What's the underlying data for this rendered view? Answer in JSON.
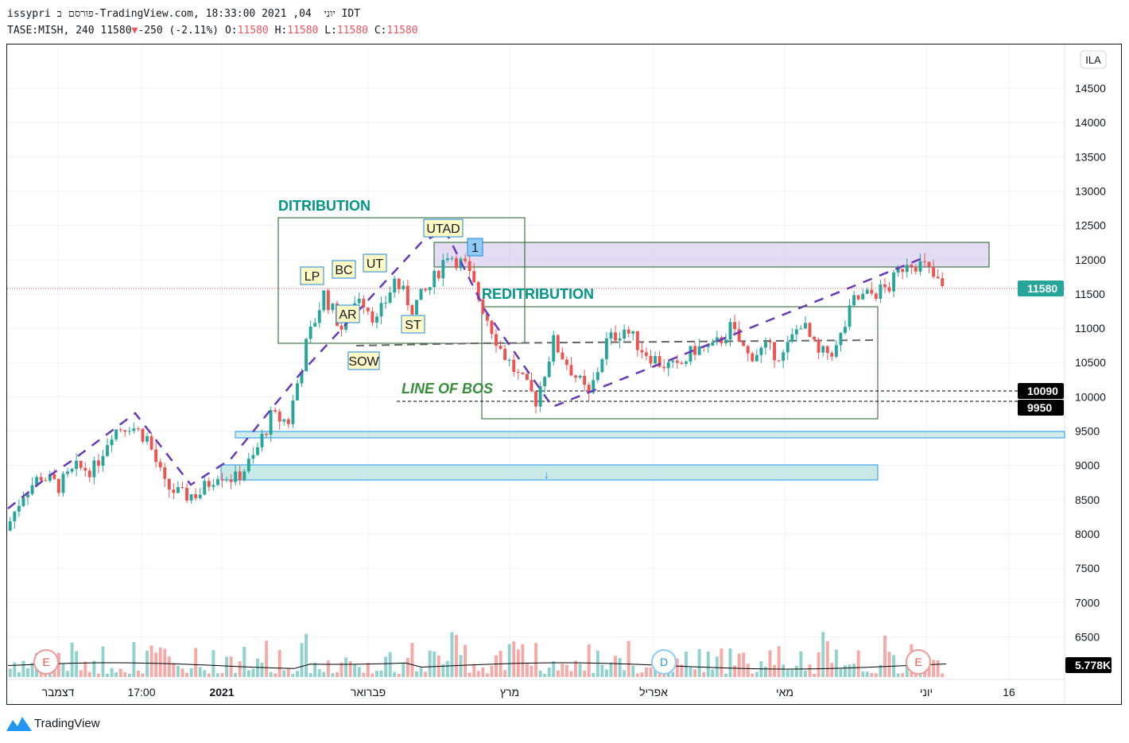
{
  "header": {
    "line1": "issypri פורסם ב-TradingView.com, יוני  04, 2021 18:33:00 IDT",
    "symbol": "TASE:MISH, 240 11580",
    "change": "-250 (-2.11%)",
    "o_label": "O:",
    "o": "11580",
    "h_label": "H:",
    "h": "11580",
    "l_label": "L:",
    "l": "11580",
    "c_label": "C:",
    "c": "11580"
  },
  "currency_badge": "ILA",
  "price_axis": [
    "14500",
    "14000",
    "13500",
    "13000",
    "12500",
    "12000",
    "11500",
    "11000",
    "10500",
    "10000",
    "9500",
    "9000",
    "8500",
    "8000",
    "7500",
    "7000",
    "6500"
  ],
  "price_labels": {
    "last": "11580",
    "level1": "10090",
    "level2": "9950",
    "volume_ma": "5.778K"
  },
  "time_axis": [
    "דצמבר",
    "17:00",
    "2021",
    "פברואר",
    "מרץ",
    "אפריל",
    "מאי",
    "יוני",
    "16"
  ],
  "annotations": {
    "distribution": "DITRIBUTION",
    "redistribution": "REDITRIBUTION",
    "line_of_bos": "LINE OF BOS",
    "labels": [
      "LP",
      "BC",
      "AR",
      "UT",
      "SOW",
      "ST",
      "UTAD",
      "1"
    ]
  },
  "event_markers": [
    "E",
    "D",
    "E"
  ],
  "colors": {
    "up": "#26a69a",
    "down": "#ef5350",
    "accent": "#2196f3",
    "last_price": "#26a69a",
    "pattern": "#673ab7"
  },
  "brand": "TradingView",
  "chart_data": {
    "type": "candlestick",
    "symbol": "TASE:MISH",
    "interval": "240",
    "closes": [
      8050,
      8600,
      8850,
      8700,
      8950,
      8950,
      9500,
      9600,
      9400,
      8700,
      8550,
      8600,
      8900,
      8800,
      9100,
      9700,
      9650,
      10750,
      11500,
      11000,
      11500,
      11100,
      11700,
      11300,
      11600,
      12100,
      11900,
      11300,
      10700,
      10300,
      9950,
      10800,
      10400,
      10000,
      10800,
      11000,
      10700,
      10500,
      10400,
      10700,
      10700,
      11000,
      10600,
      10700,
      10600,
      11100,
      10600,
      10700,
      11400,
      11500,
      11600,
      12000,
      11900,
      11580
    ],
    "ylim": [
      6200,
      14900
    ]
  }
}
